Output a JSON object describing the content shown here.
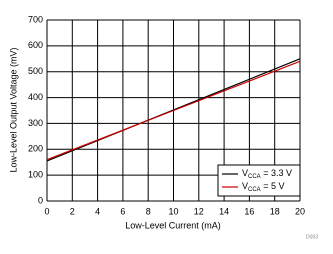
{
  "chart_data": {
    "type": "line",
    "x_label": "Low-Level Current (mA)",
    "y_label": "Low-Level Output Voltage (mV)",
    "figure_id": "D003",
    "x": [
      0,
      10,
      20
    ],
    "series": [
      {
        "name": "VCCA = 3.3 V",
        "color": "#000000",
        "values": [
          155,
          352,
          550
        ]
      },
      {
        "name": "VCCA = 5 V",
        "color": "#cc0000",
        "values": [
          160,
          350,
          540
        ]
      }
    ],
    "xlim": [
      0,
      20
    ],
    "xticks": [
      0,
      2,
      4,
      6,
      8,
      10,
      12,
      14,
      16,
      18,
      20
    ],
    "ylim": [
      0,
      700
    ],
    "yticks": [
      0,
      100,
      200,
      300,
      400,
      500,
      600,
      700
    ],
    "grid": true,
    "legend": "lower right"
  }
}
